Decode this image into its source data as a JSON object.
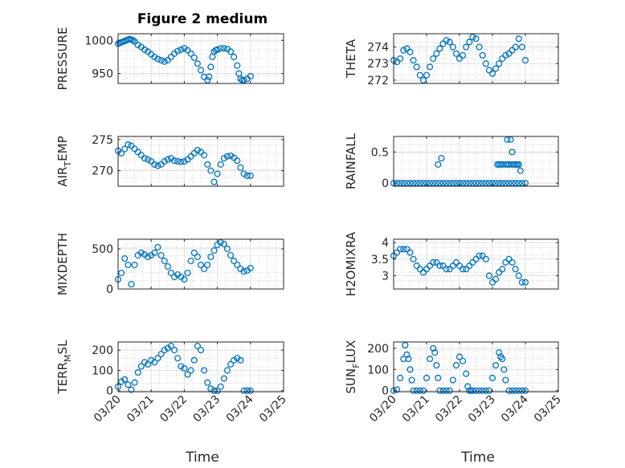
{
  "figure_title": "Figure 2 medium",
  "xlabel_text": "Time",
  "colors": {
    "marker": "#0072BD",
    "axis": "#262626",
    "grid": "#dfdfdf",
    "minor_grid": "#bdbdbd"
  },
  "chart_data": [
    {
      "type": "scatter",
      "name": "pressure",
      "ylabel": "PRESSURE",
      "xticks": [
        "03/20",
        "03/21",
        "03/22",
        "03/23",
        "03/24",
        "03/25"
      ],
      "xlim": [
        0,
        5
      ],
      "ylim": [
        935,
        1010
      ],
      "yticks": [
        950,
        1000
      ],
      "x": [
        0.0,
        0.05,
        0.1,
        0.15,
        0.2,
        0.25,
        0.3,
        0.35,
        0.4,
        0.45,
        0.5,
        0.6,
        0.7,
        0.8,
        0.9,
        1.0,
        1.1,
        1.2,
        1.3,
        1.4,
        1.5,
        1.6,
        1.7,
        1.8,
        1.9,
        2.0,
        2.1,
        2.2,
        2.3,
        2.4,
        2.5,
        2.6,
        2.7,
        2.75,
        2.8,
        2.85,
        2.9,
        2.95,
        3.0,
        3.1,
        3.2,
        3.3,
        3.4,
        3.5,
        3.6,
        3.65,
        3.7,
        3.75,
        3.8,
        3.9,
        4.0
      ],
      "y": [
        995,
        996,
        997,
        998,
        999,
        1000,
        1001,
        1002,
        1001,
        1000,
        998,
        993,
        990,
        986,
        983,
        979,
        975,
        972,
        970,
        968,
        970,
        975,
        980,
        984,
        986,
        988,
        985,
        980,
        974,
        965,
        955,
        945,
        940,
        945,
        960,
        975,
        983,
        985,
        986,
        988,
        988,
        987,
        983,
        975,
        962,
        950,
        942,
        940,
        940,
        942,
        946
      ]
    },
    {
      "type": "scatter",
      "name": "theta",
      "ylabel": "THETA",
      "xticks": [
        "03/20",
        "03/21",
        "03/22",
        "03/23",
        "03/24",
        "03/25"
      ],
      "xlim": [
        0,
        5
      ],
      "ylim": [
        271.8,
        274.8
      ],
      "yticks": [
        272,
        273,
        274
      ],
      "x": [
        0.0,
        0.1,
        0.2,
        0.3,
        0.4,
        0.5,
        0.6,
        0.7,
        0.8,
        0.9,
        1.0,
        1.1,
        1.2,
        1.3,
        1.4,
        1.5,
        1.6,
        1.7,
        1.8,
        1.9,
        2.0,
        2.1,
        2.2,
        2.3,
        2.4,
        2.5,
        2.6,
        2.7,
        2.8,
        2.9,
        3.0,
        3.1,
        3.2,
        3.3,
        3.4,
        3.5,
        3.6,
        3.7,
        3.8,
        3.9,
        4.0
      ],
      "y": [
        273.2,
        273.1,
        273.3,
        273.8,
        273.9,
        273.7,
        273.2,
        272.8,
        272.3,
        272.0,
        272.3,
        272.8,
        273.3,
        273.6,
        273.9,
        274.2,
        274.4,
        274.3,
        274.0,
        273.6,
        273.3,
        273.5,
        274.0,
        274.3,
        274.6,
        274.5,
        274.0,
        273.5,
        273.0,
        272.6,
        272.4,
        272.7,
        273.0,
        273.3,
        273.5,
        273.6,
        273.8,
        274.0,
        274.5,
        274.0,
        273.2
      ]
    },
    {
      "type": "scatter",
      "name": "air_temp",
      "ylabel": "AIR_TEMP",
      "xticks": [
        "03/20",
        "03/21",
        "03/22",
        "03/23",
        "03/24",
        "03/25"
      ],
      "xlim": [
        0,
        5
      ],
      "ylim": [
        267.5,
        275.5
      ],
      "yticks": [
        270,
        275
      ],
      "x": [
        0.0,
        0.1,
        0.2,
        0.3,
        0.4,
        0.5,
        0.6,
        0.7,
        0.8,
        0.9,
        1.0,
        1.1,
        1.2,
        1.3,
        1.4,
        1.5,
        1.6,
        1.7,
        1.8,
        1.9,
        2.0,
        2.1,
        2.2,
        2.3,
        2.4,
        2.5,
        2.6,
        2.7,
        2.8,
        2.9,
        3.0,
        3.1,
        3.2,
        3.3,
        3.4,
        3.5,
        3.6,
        3.7,
        3.8,
        3.9,
        4.0
      ],
      "y": [
        273.2,
        272.8,
        273.5,
        274.2,
        274.0,
        273.5,
        273.0,
        272.5,
        272.0,
        271.8,
        271.5,
        271.0,
        270.8,
        271.0,
        271.5,
        271.8,
        272.0,
        271.6,
        271.5,
        271.4,
        271.5,
        271.8,
        272.3,
        272.8,
        273.3,
        273.0,
        272.5,
        271.0,
        270.0,
        268.2,
        269.5,
        271.0,
        272.0,
        272.3,
        272.4,
        272.1,
        271.6,
        270.5,
        269.5,
        269.2,
        269.2
      ]
    },
    {
      "type": "scatter",
      "name": "rainfall",
      "ylabel": "RAINFALL",
      "xticks": [
        "03/20",
        "03/21",
        "03/22",
        "03/23",
        "03/24",
        "03/25"
      ],
      "xlim": [
        0,
        5
      ],
      "ylim": [
        -0.05,
        0.75
      ],
      "yticks": [
        0,
        0.5
      ],
      "x": [
        0.0,
        0.1,
        0.2,
        0.3,
        0.4,
        0.5,
        0.6,
        0.7,
        0.8,
        0.9,
        1.0,
        1.1,
        1.2,
        1.3,
        1.4,
        1.5,
        1.6,
        1.7,
        1.8,
        1.9,
        2.0,
        2.1,
        2.2,
        2.3,
        2.4,
        2.5,
        2.6,
        2.7,
        2.8,
        2.9,
        3.0,
        3.1,
        3.2,
        3.3,
        3.4,
        3.5,
        3.6,
        3.7,
        3.8,
        3.9,
        4.0,
        1.35,
        1.45,
        3.45,
        3.55,
        3.6,
        3.65,
        3.75,
        3.8,
        3.15,
        3.2,
        3.25,
        3.3,
        3.4,
        3.45,
        3.5,
        3.6,
        3.7,
        3.75,
        3.85
      ],
      "y": [
        0,
        0,
        0,
        0,
        0,
        0,
        0,
        0,
        0,
        0,
        0,
        0,
        0,
        0,
        0,
        0,
        0,
        0,
        0,
        0,
        0,
        0,
        0,
        0,
        0,
        0,
        0,
        0,
        0,
        0,
        0,
        0,
        0,
        0,
        0,
        0,
        0,
        0,
        0,
        0,
        0,
        0.3,
        0.4,
        0.7,
        0.7,
        0.5,
        0.3,
        0.3,
        0.3,
        0.3,
        0.3,
        0.3,
        0.3,
        0.3,
        0.3,
        0.3,
        0.3,
        0.3,
        0.3,
        0.2
      ]
    },
    {
      "type": "scatter",
      "name": "mixdepth",
      "ylabel": "MIXDEPTH",
      "xticks": [
        "03/20",
        "03/21",
        "03/22",
        "03/23",
        "03/24",
        "03/25"
      ],
      "xlim": [
        0,
        5
      ],
      "ylim": [
        0,
        620
      ],
      "yticks": [
        0,
        500
      ],
      "x": [
        0.0,
        0.1,
        0.2,
        0.3,
        0.4,
        0.5,
        0.6,
        0.7,
        0.8,
        0.9,
        1.0,
        1.1,
        1.2,
        1.3,
        1.4,
        1.5,
        1.6,
        1.7,
        1.8,
        1.9,
        2.0,
        2.1,
        2.2,
        2.3,
        2.4,
        2.5,
        2.6,
        2.7,
        2.8,
        2.9,
        3.0,
        3.1,
        3.2,
        3.3,
        3.4,
        3.5,
        3.6,
        3.7,
        3.8,
        3.9,
        4.0
      ],
      "y": [
        120,
        200,
        380,
        300,
        60,
        300,
        420,
        450,
        430,
        400,
        420,
        450,
        520,
        420,
        350,
        280,
        200,
        150,
        180,
        150,
        120,
        200,
        350,
        450,
        400,
        300,
        250,
        300,
        400,
        480,
        550,
        580,
        560,
        500,
        420,
        350,
        300,
        250,
        220,
        230,
        260
      ]
    },
    {
      "type": "scatter",
      "name": "h2omixra",
      "ylabel": "H2OMIXRA",
      "xticks": [
        "03/20",
        "03/21",
        "03/22",
        "03/23",
        "03/24",
        "03/25"
      ],
      "xlim": [
        0,
        5
      ],
      "ylim": [
        2.6,
        4.1
      ],
      "yticks": [
        3,
        3.5,
        4
      ],
      "x": [
        0.0,
        0.1,
        0.2,
        0.3,
        0.4,
        0.5,
        0.6,
        0.7,
        0.8,
        0.9,
        1.0,
        1.1,
        1.2,
        1.3,
        1.4,
        1.5,
        1.6,
        1.7,
        1.8,
        1.9,
        2.0,
        2.1,
        2.2,
        2.3,
        2.4,
        2.5,
        2.6,
        2.7,
        2.8,
        2.9,
        3.0,
        3.1,
        3.2,
        3.3,
        3.4,
        3.5,
        3.6,
        3.7,
        3.8,
        3.9,
        4.0
      ],
      "y": [
        3.6,
        3.7,
        3.8,
        3.8,
        3.8,
        3.7,
        3.5,
        3.3,
        3.2,
        3.1,
        3.2,
        3.3,
        3.4,
        3.4,
        3.3,
        3.3,
        3.2,
        3.2,
        3.3,
        3.4,
        3.3,
        3.2,
        3.2,
        3.3,
        3.4,
        3.5,
        3.6,
        3.6,
        3.5,
        3.0,
        2.8,
        2.9,
        3.1,
        3.2,
        3.4,
        3.5,
        3.4,
        3.2,
        3.0,
        2.8,
        2.8
      ]
    },
    {
      "type": "scatter",
      "name": "terr_msl",
      "ylabel": "TERR_MSL",
      "xticks": [
        "03/20",
        "03/21",
        "03/22",
        "03/23",
        "03/24",
        "03/25"
      ],
      "xlim": [
        0,
        5
      ],
      "ylim": [
        -5,
        240
      ],
      "yticks": [
        0,
        100,
        200
      ],
      "x": [
        0.0,
        0.1,
        0.2,
        0.3,
        0.4,
        0.5,
        0.6,
        0.7,
        0.8,
        0.9,
        1.0,
        1.1,
        1.2,
        1.3,
        1.4,
        1.5,
        1.6,
        1.7,
        1.8,
        1.9,
        2.0,
        2.1,
        2.2,
        2.3,
        2.4,
        2.5,
        2.6,
        2.7,
        2.8,
        2.9,
        3.0,
        3.1,
        3.2,
        3.3,
        3.4,
        3.5,
        3.6,
        3.7,
        3.8,
        3.9,
        4.0
      ],
      "y": [
        20,
        45,
        55,
        30,
        5,
        40,
        90,
        120,
        140,
        130,
        150,
        140,
        160,
        180,
        200,
        210,
        220,
        200,
        160,
        120,
        110,
        80,
        100,
        150,
        220,
        200,
        100,
        40,
        10,
        0,
        0,
        20,
        60,
        100,
        130,
        150,
        160,
        150,
        0,
        0,
        0
      ]
    },
    {
      "type": "scatter",
      "name": "sun_flux",
      "ylabel": "SUN_FLUX",
      "xticks": [
        "03/20",
        "03/21",
        "03/22",
        "03/23",
        "03/24",
        "03/25"
      ],
      "xlim": [
        0,
        5
      ],
      "ylim": [
        -5,
        230
      ],
      "yticks": [
        0,
        100,
        200
      ],
      "x": [
        0.0,
        0.1,
        0.2,
        0.3,
        0.35,
        0.4,
        0.45,
        0.5,
        0.55,
        0.6,
        0.7,
        0.8,
        0.9,
        1.0,
        1.1,
        1.2,
        1.25,
        1.3,
        1.35,
        1.4,
        1.5,
        1.6,
        1.7,
        1.8,
        1.9,
        2.0,
        2.1,
        2.2,
        2.25,
        2.3,
        2.35,
        2.4,
        2.5,
        2.6,
        2.7,
        2.8,
        2.9,
        3.0,
        3.1,
        3.2,
        3.25,
        3.3,
        3.35,
        3.4,
        3.5,
        3.6,
        3.7,
        3.8,
        3.9,
        4.0
      ],
      "y": [
        0,
        5,
        60,
        150,
        215,
        170,
        150,
        100,
        50,
        0,
        0,
        0,
        0,
        60,
        150,
        200,
        180,
        120,
        60,
        0,
        0,
        0,
        0,
        50,
        120,
        160,
        140,
        80,
        20,
        0,
        0,
        0,
        0,
        0,
        0,
        0,
        0,
        60,
        120,
        180,
        160,
        150,
        100,
        50,
        0,
        0,
        0,
        0,
        0,
        0
      ]
    }
  ]
}
